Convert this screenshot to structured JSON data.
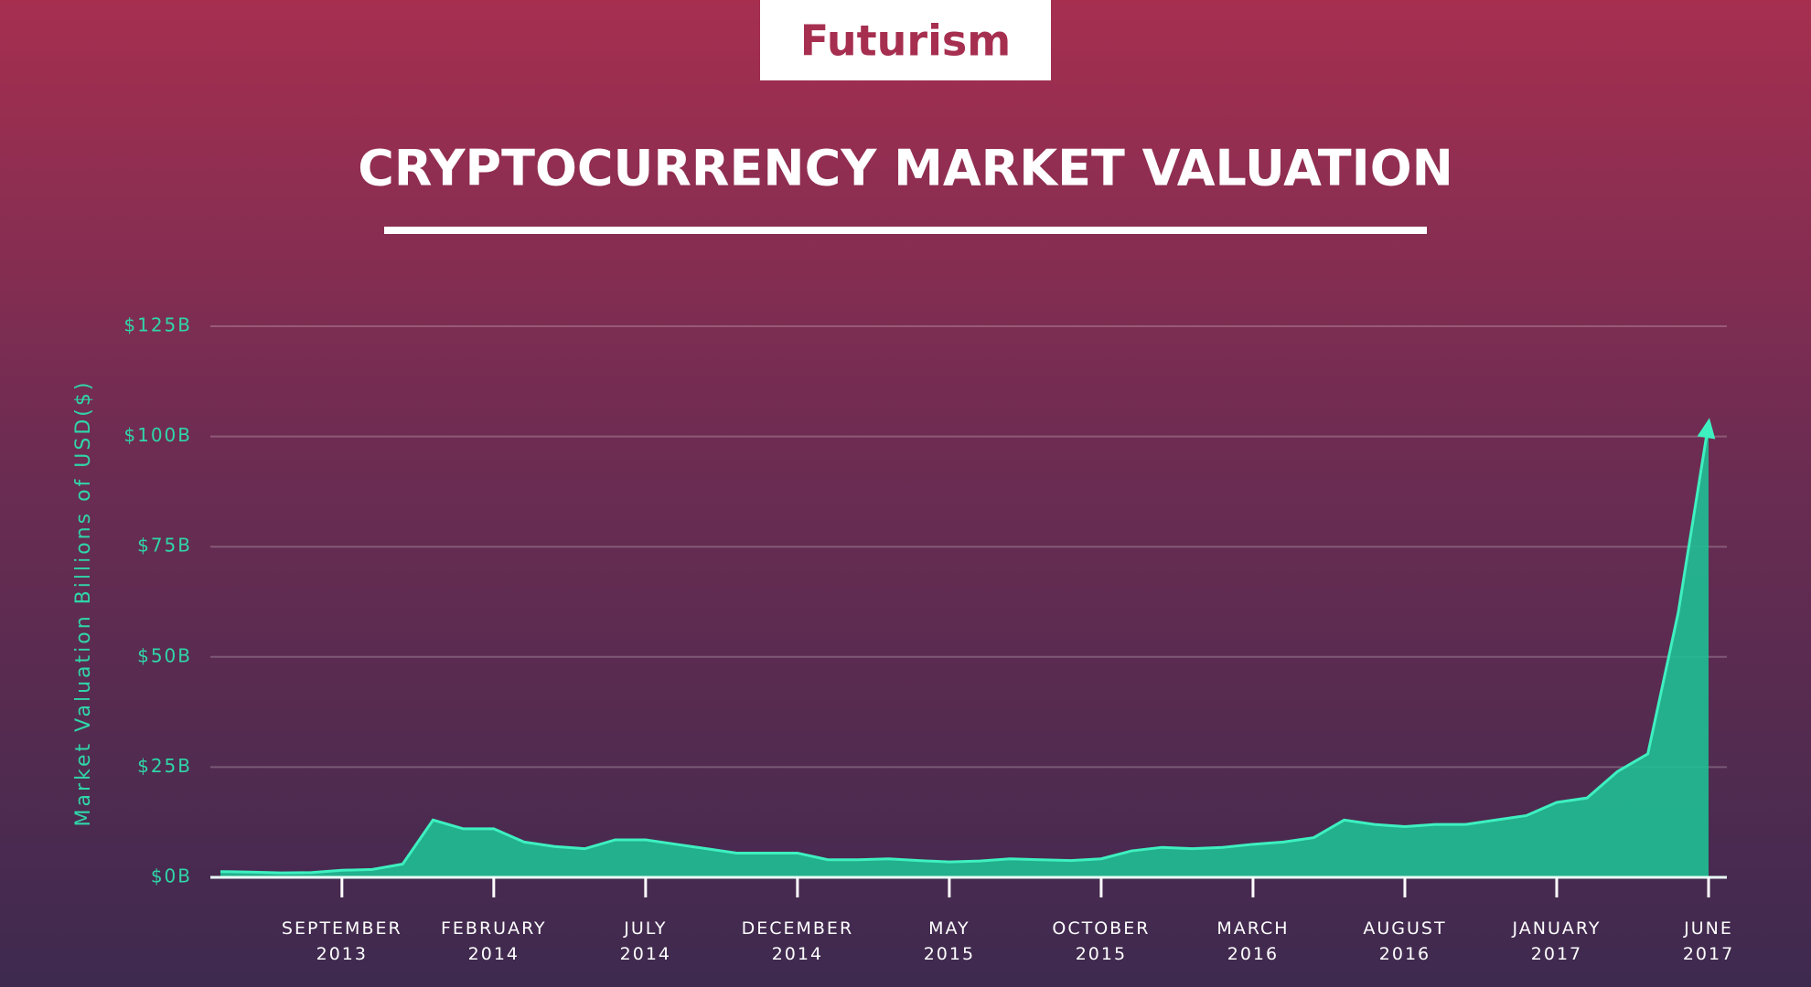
{
  "brand": "Futurism",
  "chart_data": {
    "type": "area",
    "title": "CRYPTOCURRENCY MARKET VALUATION",
    "y_label": "Market Valuation Billions of USD($)",
    "x": [
      "2013-05",
      "2013-06",
      "2013-07",
      "2013-08",
      "2013-09",
      "2013-10",
      "2013-11",
      "2013-12",
      "2014-01",
      "2014-02",
      "2014-03",
      "2014-04",
      "2014-05",
      "2014-06",
      "2014-07",
      "2014-08",
      "2014-09",
      "2014-10",
      "2014-11",
      "2014-12",
      "2015-01",
      "2015-02",
      "2015-03",
      "2015-04",
      "2015-05",
      "2015-06",
      "2015-07",
      "2015-08",
      "2015-09",
      "2015-10",
      "2015-11",
      "2015-12",
      "2016-01",
      "2016-02",
      "2016-03",
      "2016-04",
      "2016-05",
      "2016-06",
      "2016-07",
      "2016-08",
      "2016-09",
      "2016-10",
      "2016-11",
      "2016-12",
      "2017-01",
      "2017-02",
      "2017-03",
      "2017-04",
      "2017-05",
      "2017-06"
    ],
    "series": [
      {
        "name": "Market valuation",
        "color": "#1fbf94",
        "values": [
          1.3,
          1.2,
          1.0,
          1.1,
          1.6,
          1.8,
          3,
          13,
          11,
          11,
          8,
          7,
          6.5,
          8.5,
          8.5,
          7.5,
          6.5,
          5.5,
          5.5,
          5.5,
          4,
          4,
          4.2,
          3.8,
          3.5,
          3.7,
          4.2,
          4,
          3.8,
          4.2,
          6,
          6.8,
          6.5,
          6.8,
          7.5,
          8,
          9,
          13,
          12,
          11.5,
          12,
          12,
          13,
          14,
          17,
          18,
          24,
          28,
          60,
          103
        ]
      }
    ],
    "xticks": [
      {
        "value": "2013-09",
        "label": "SEPTEMBER 2013"
      },
      {
        "value": "2014-02",
        "label": "FEBRUARY 2014"
      },
      {
        "value": "2014-07",
        "label": "JULY 2014"
      },
      {
        "value": "2014-12",
        "label": "DECEMBER 2014"
      },
      {
        "value": "2015-05",
        "label": "MAY 2015"
      },
      {
        "value": "2015-10",
        "label": "OCTOBER 2015"
      },
      {
        "value": "2016-03",
        "label": "MARCH 2016"
      },
      {
        "value": "2016-08",
        "label": "AUGUST 2016"
      },
      {
        "value": "2017-01",
        "label": "JANUARY 2017"
      },
      {
        "value": "2017-06",
        "label": "JUNE 2017"
      }
    ],
    "ylim": [
      0,
      125
    ],
    "yticks": [
      {
        "value": 0,
        "label": "$0B"
      },
      {
        "value": 25,
        "label": "$25B"
      },
      {
        "value": 50,
        "label": "$50B"
      },
      {
        "value": 75,
        "label": "$75B"
      },
      {
        "value": 100,
        "label": "$100B"
      },
      {
        "value": 125,
        "label": "$125B"
      }
    ],
    "grid": true
  }
}
